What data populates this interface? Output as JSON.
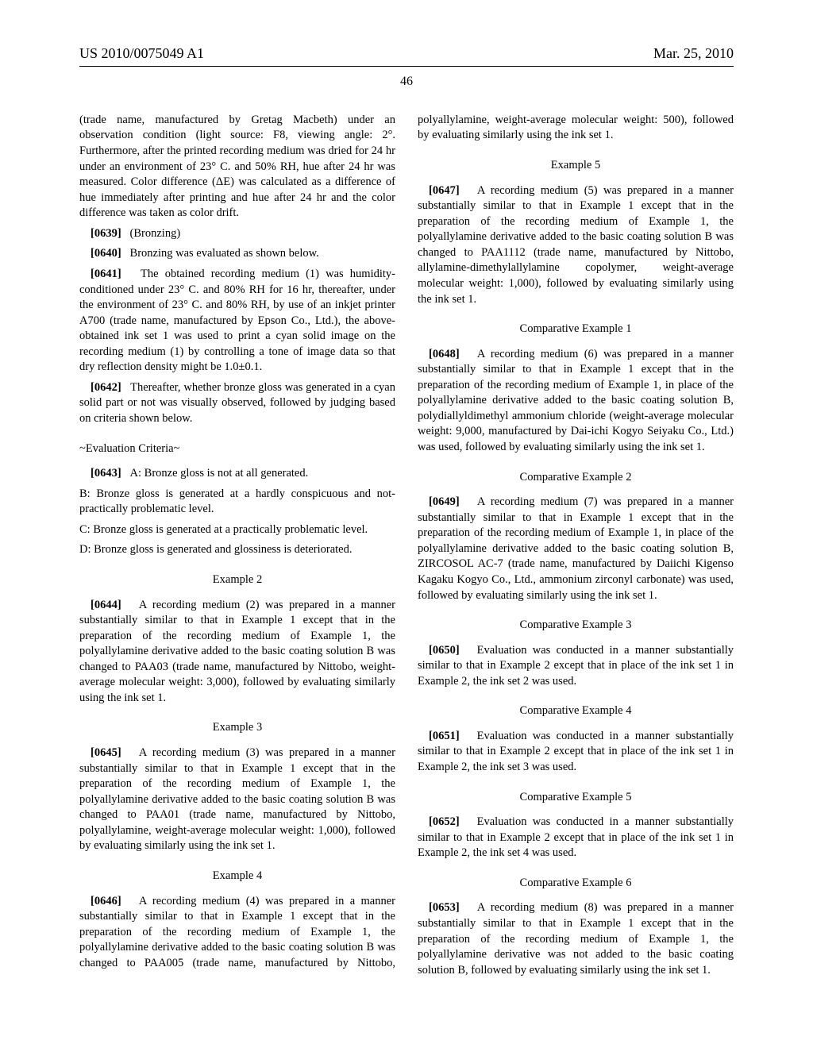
{
  "header": {
    "pubNumber": "US 2010/0075049 A1",
    "date": "Mar. 25, 2010"
  },
  "pageNumber": "46",
  "leftCol": {
    "p0_cont": "(trade name, manufactured by Gretag Macbeth) under an observation condition (light source: F8, viewing angle: 2°. Furthermore, after the printed recording medium was dried for 24 hr under an environment of 23° C. and 50% RH, hue after 24 hr was measured. Color difference (ΔE) was calculated as a difference of hue immediately after printing and hue after 24 hr and the color difference was taken as color drift.",
    "p0639_num": "[0639]",
    "p0639": "(Bronzing)",
    "p0640_num": "[0640]",
    "p0640": "Bronzing was evaluated as shown below.",
    "p0641_num": "[0641]",
    "p0641": "The obtained recording medium (1) was humidity-conditioned under 23° C. and 80% RH for 16 hr, thereafter, under the environment of 23° C. and 80% RH, by use of an inkjet printer A700 (trade name, manufactured by Epson Co., Ltd.), the above-obtained ink set 1 was used to print a cyan solid image on the recording medium (1) by controlling a tone of image data so that dry reflection density might be 1.0±0.1.",
    "p0642_num": "[0642]",
    "p0642": "Thereafter, whether bronze gloss was generated in a cyan solid part or not was visually observed, followed by judging based on criteria shown below.",
    "criteriaLabel": "~Evaluation Criteria~",
    "p0643_num": "[0643]",
    "p0643": "A: Bronze gloss is not at all generated.",
    "critB": "B: Bronze gloss is generated at a hardly conspicuous and not-practically problematic level.",
    "critC": "C: Bronze gloss is generated at a practically problematic level.",
    "critD": "D: Bronze gloss is generated and glossiness is deteriorated.",
    "ex2_title": "Example 2",
    "p0644_num": "[0644]",
    "p0644": "A recording medium (2) was prepared in a manner substantially similar to that in Example 1 except that in the preparation of the recording medium of Example 1, the polyallylamine derivative added to the basic coating solution B was changed to PAA03 (trade name, manufactured by Nittobo, weight-average molecular weight: 3,000), followed by evaluating similarly using the ink set 1.",
    "ex3_title": "Example 3",
    "p0645_num": "[0645]",
    "p0645": "A recording medium (3) was prepared in a manner substantially similar to that in Example 1 except that in the preparation of the recording medium of Example 1, the polyallylamine derivative added to the basic coating solution B was changed to PAA01 (trade name, manufactured by Nittobo, polyallylamine, weight-average molecular weight: 1,000), followed by evaluating similarly using the ink set 1.",
    "ex4_title": "Example 4",
    "p0646_num": "[0646]",
    "p0646": "A recording medium (4) was prepared in a manner substantially similar to that in Example 1 except that in the preparation of the recording medium of Example 1, the polyallylamine derivative added to the basic coating solution B was changed to PAA005 (trade name, manufactured by Nittobo, polyallylamine, weight-average molecular weight: 500), followed by evaluating similarly using the ink set 1."
  },
  "rightCol": {
    "ex5_title": "Example 5",
    "p0647_num": "[0647]",
    "p0647": "A recording medium (5) was prepared in a manner substantially similar to that in Example 1 except that in the preparation of the recording medium of Example 1, the polyallylamine derivative added to the basic coating solution B was changed to PAA1112 (trade name, manufactured by Nittobo, allylamine-dimethylallylamine copolymer, weight-average molecular weight: 1,000), followed by evaluating similarly using the ink set 1.",
    "ce1_title": "Comparative Example 1",
    "p0648_num": "[0648]",
    "p0648": "A recording medium (6) was prepared in a manner substantially similar to that in Example 1 except that in the preparation of the recording medium of Example 1, in place of the polyallylamine derivative added to the basic coating solution B, polydiallyldimethyl ammonium chloride (weight-average molecular weight: 9,000, manufactured by Dai-ichi Kogyo Seiyaku Co., Ltd.) was used, followed by evaluating similarly using the ink set 1.",
    "ce2_title": "Comparative Example 2",
    "p0649_num": "[0649]",
    "p0649": "A recording medium (7) was prepared in a manner substantially similar to that in Example 1 except that in the preparation of the recording medium of Example 1, in place of the polyallylamine derivative added to the basic coating solution B, ZIRCOSOL AC-7 (trade name, manufactured by Daiichi Kigenso Kagaku Kogyo Co., Ltd., ammonium zirconyl carbonate) was used, followed by evaluating similarly using the ink set 1.",
    "ce3_title": "Comparative Example 3",
    "p0650_num": "[0650]",
    "p0650": "Evaluation was conducted in a manner substantially similar to that in Example 2 except that in place of the ink set 1 in Example 2, the ink set 2 was used.",
    "ce4_title": "Comparative Example 4",
    "p0651_num": "[0651]",
    "p0651": "Evaluation was conducted in a manner substantially similar to that in Example 2 except that in place of the ink set 1 in Example 2, the ink set 3 was used.",
    "ce5_title": "Comparative Example 5",
    "p0652_num": "[0652]",
    "p0652": "Evaluation was conducted in a manner substantially similar to that in Example 2 except that in place of the ink set 1 in Example 2, the ink set 4 was used.",
    "ce6_title": "Comparative Example 6",
    "p0653_num": "[0653]",
    "p0653": "A recording medium (8) was prepared in a manner substantially similar to that in Example 1 except that in the preparation of the recording medium of Example 1, the polyallylamine derivative was not added to the basic coating solution B, followed by evaluating similarly using the ink set 1."
  }
}
